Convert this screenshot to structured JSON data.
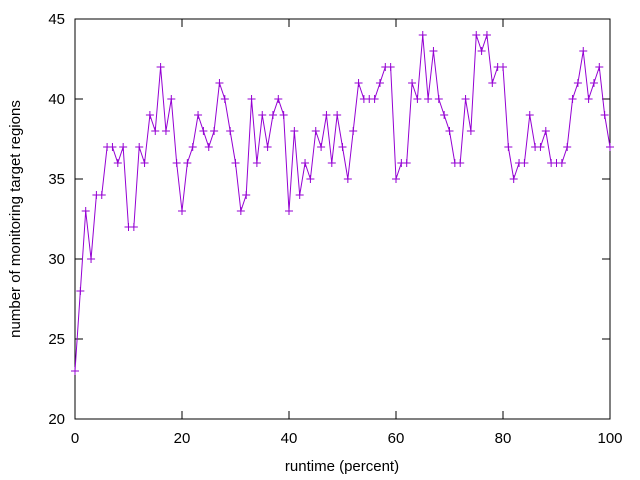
{
  "chart_data": {
    "type": "line",
    "title": "",
    "xlabel": "runtime (percent)",
    "ylabel": "number of monitoring target regions",
    "xlim": [
      0,
      100
    ],
    "ylim": [
      20,
      45
    ],
    "x_ticks": [
      "0",
      "20",
      "40",
      "60",
      "80",
      "100"
    ],
    "y_ticks": [
      "20",
      "25",
      "30",
      "35",
      "40",
      "45"
    ],
    "grid": false,
    "legend": "none",
    "marker": "plus",
    "series_color": "#9400d3",
    "x": [
      0,
      1,
      2,
      3,
      4,
      5,
      6,
      7,
      8,
      9,
      10,
      11,
      12,
      13,
      14,
      15,
      16,
      17,
      18,
      19,
      20,
      21,
      22,
      23,
      24,
      25,
      26,
      27,
      28,
      29,
      30,
      31,
      32,
      33,
      34,
      35,
      36,
      37,
      38,
      39,
      40,
      41,
      42,
      43,
      44,
      45,
      46,
      47,
      48,
      49,
      50,
      51,
      52,
      53,
      54,
      55,
      56,
      57,
      58,
      59,
      60,
      61,
      62,
      63,
      64,
      65,
      66,
      67,
      68,
      69,
      70,
      71,
      72,
      73,
      74,
      75,
      76,
      77,
      78,
      79,
      80,
      81,
      82,
      83,
      84,
      85,
      86,
      87,
      88,
      89,
      90,
      91,
      92,
      93,
      94,
      95,
      96,
      97,
      98,
      99,
      100
    ],
    "y": [
      23,
      28,
      33,
      30,
      34,
      34,
      37,
      37,
      36,
      37,
      32,
      32,
      37,
      36,
      39,
      38,
      42,
      38,
      40,
      36,
      33,
      36,
      37,
      39,
      38,
      37,
      38,
      41,
      40,
      38,
      36,
      33,
      34,
      40,
      36,
      39,
      37,
      39,
      40,
      39,
      33,
      38,
      34,
      36,
      35,
      38,
      37,
      39,
      36,
      39,
      37,
      35,
      38,
      41,
      40,
      40,
      40,
      41,
      42,
      42,
      35,
      36,
      36,
      41,
      40,
      44,
      40,
      43,
      40,
      39,
      38,
      36,
      36,
      40,
      38,
      44,
      43,
      44,
      41,
      42,
      42,
      37,
      35,
      36,
      36,
      39,
      37,
      37,
      38,
      36,
      36,
      36,
      37,
      40,
      41,
      43,
      40,
      41,
      42,
      39,
      37
    ]
  }
}
